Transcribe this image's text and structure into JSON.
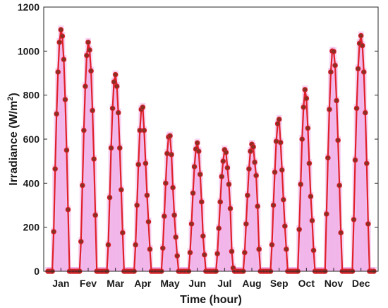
{
  "chart_data": {
    "type": "line",
    "xlabel": "Time (hour)",
    "ylabel": "Irradiance (W/m2)",
    "ylabel_parts": {
      "before": "Irradiance (W/m",
      "sup": "2",
      "after": ")"
    },
    "ylim": [
      0,
      1200
    ],
    "yticks": [
      0,
      200,
      400,
      600,
      800,
      1000,
      1200
    ],
    "categories": [
      "Jan",
      "Fev",
      "Mar",
      "Apr",
      "May",
      "Jun",
      "Jul",
      "Aug",
      "Sep",
      "Oct",
      "Nov",
      "Dec"
    ],
    "grid": false,
    "legend": "none",
    "colors": {
      "line": "#e0202a",
      "marker_fill": "#8b2f24",
      "marker_edge": "#e0202a",
      "halo": "#f0b3ea"
    },
    "series": [
      {
        "daily_profiles": [
          [
            0,
            0,
            0,
            0,
            180,
            465,
            715,
            905,
            1040,
            1097,
            1068,
            962,
            780,
            550,
            280,
            0,
            0,
            0,
            0
          ],
          [
            0,
            0,
            0,
            0,
            135,
            390,
            640,
            840,
            980,
            1040,
            1005,
            910,
            730,
            510,
            255,
            0,
            0,
            0,
            0
          ],
          [
            0,
            0,
            0,
            0,
            120,
            335,
            560,
            740,
            860,
            893,
            840,
            720,
            560,
            370,
            175,
            0,
            0,
            0,
            0
          ],
          [
            0,
            0,
            0,
            0,
            120,
            300,
            485,
            640,
            735,
            745,
            640,
            490,
            345,
            225,
            100,
            0,
            0,
            0,
            0
          ],
          [
            0,
            0,
            0,
            0,
            105,
            250,
            400,
            535,
            610,
            615,
            530,
            380,
            255,
            155,
            70,
            0,
            0,
            0,
            0
          ],
          [
            0,
            0,
            0,
            0,
            85,
            215,
            355,
            475,
            555,
            583,
            545,
            440,
            315,
            160,
            75,
            0,
            0,
            0,
            0
          ],
          [
            0,
            0,
            0,
            0,
            80,
            195,
            315,
            430,
            500,
            552,
            540,
            470,
            395,
            285,
            90,
            15,
            0,
            0,
            0
          ],
          [
            0,
            0,
            0,
            0,
            85,
            215,
            345,
            465,
            545,
            577,
            565,
            495,
            435,
            295,
            100,
            0,
            0,
            0,
            0
          ],
          [
            0,
            0,
            0,
            0,
            120,
            300,
            450,
            590,
            670,
            690,
            585,
            460,
            325,
            205,
            100,
            0,
            0,
            0,
            0
          ],
          [
            0,
            0,
            0,
            0,
            190,
            395,
            600,
            745,
            825,
            785,
            650,
            490,
            340,
            230,
            95,
            0,
            0,
            0,
            0
          ],
          [
            0,
            0,
            0,
            0,
            260,
            515,
            735,
            905,
            1000,
            998,
            935,
            775,
            595,
            390,
            175,
            0,
            0,
            0,
            0
          ],
          [
            0,
            0,
            0,
            0,
            235,
            505,
            740,
            920,
            1035,
            1070,
            1025,
            905,
            720,
            490,
            215,
            0,
            0,
            0,
            0
          ]
        ]
      }
    ]
  }
}
